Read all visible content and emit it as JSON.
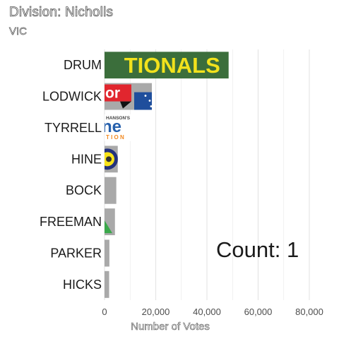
{
  "header": {
    "title": "Division: Nicholls",
    "subtitle": "VIC"
  },
  "annotation": {
    "label": "Count:",
    "value": "1"
  },
  "logo_text": {
    "nationals": "TIONALS",
    "labor": "or",
    "one_nation_top": "HANSON'S",
    "one_nation_mid": "ne",
    "one_nation_bot": "T I O N"
  },
  "colors": {
    "bar_default": "#a9a9a9",
    "grid": "#e6e6e6",
    "nationals_green": "#3b6e3b",
    "nationals_yellow": "#f2e21c",
    "labor_red": "#e1262e",
    "labor_blue": "#1f4e9c",
    "one_nation_blue": "#2761ad",
    "one_nation_orange": "#f28a22",
    "ajp_yellow": "#f7e21a",
    "ajp_blue": "#23327c",
    "greens_green": "#3aa84a"
  },
  "chart_data": {
    "type": "bar",
    "orientation": "horizontal",
    "categories": [
      "DRUM",
      "LODWICK",
      "TYRRELL",
      "HINE",
      "BOCK",
      "FREEMAN",
      "PARKER",
      "HICKS"
    ],
    "values": [
      48500,
      18500,
      10800,
      5200,
      4600,
      4100,
      1900,
      1800
    ],
    "logos": [
      "nationals-logo",
      "labor-logo",
      "one-nation-logo",
      "animal-justice-logo",
      "",
      "greens-logo",
      "",
      ""
    ],
    "xlabel": "Number of Votes",
    "ylabel": "",
    "xlim": [
      0,
      88000
    ],
    "xticks": [
      0,
      20000,
      40000,
      60000,
      80000
    ],
    "xtick_labels": [
      "0",
      "20,000",
      "40,000",
      "60,000",
      "80,000"
    ],
    "grid": true
  }
}
